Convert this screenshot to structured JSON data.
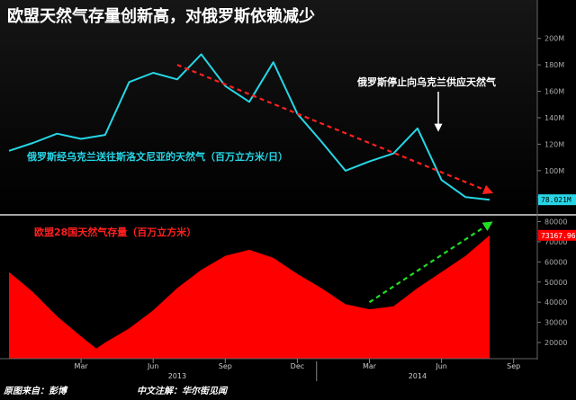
{
  "title": "欧盟天然气存量创新高，对俄罗斯依赖减少",
  "chart_data": [
    {
      "type": "line",
      "series": [
        {
          "name": "俄罗斯经乌克兰送往斯洛文尼亚的天然气（百万立方米/日）",
          "color": "#26d6e6",
          "x": [
            "2012-12",
            "2013-01",
            "2013-02",
            "2013-03",
            "2013-04",
            "2013-05",
            "2013-06",
            "2013-07",
            "2013-08",
            "2013-09",
            "2013-10",
            "2013-11",
            "2013-12",
            "2014-01",
            "2014-02",
            "2014-03",
            "2014-04",
            "2014-05",
            "2014-06",
            "2014-07",
            "2014-08"
          ],
          "values": [
            115,
            121,
            128,
            124,
            127,
            167,
            174,
            169,
            188,
            164,
            152,
            182,
            143,
            122,
            100,
            107,
            113,
            132,
            93,
            80,
            78.021
          ]
        }
      ],
      "ylim": [
        70,
        210
      ],
      "yticks": [
        "200M",
        "180M",
        "160M",
        "140M",
        "120M",
        "100M",
        "80M"
      ],
      "last_value_label": "78.021M",
      "trend_arrow": {
        "color": "#ff2020",
        "from": [
          "2013-07",
          180
        ],
        "to": [
          "2014-08",
          84
        ]
      },
      "annotations": [
        {
          "text": "俄罗斯经乌克兰送往斯洛文尼亚的天然气（百万立方米/日）",
          "color": "#26d6e6"
        },
        {
          "text": "俄罗斯停止向乌克兰供应天然气",
          "color": "#ffffff",
          "points_to": "2014-05"
        }
      ]
    },
    {
      "type": "area",
      "series": [
        {
          "name": "欧盟28国天然气存量（百万立方米）",
          "color": "#ff0000",
          "x": [
            "2012-12",
            "2013-01",
            "2013-02",
            "2013-03",
            "2013-03-20",
            "2013-04",
            "2013-05",
            "2013-06",
            "2013-07",
            "2013-08",
            "2013-09",
            "2013-10",
            "2013-11",
            "2013-12",
            "2014-01",
            "2014-02",
            "2014-03",
            "2014-04",
            "2014-05",
            "2014-06",
            "2014-07",
            "2014-08"
          ],
          "values": [
            55000,
            45000,
            33000,
            23000,
            17000,
            20000,
            27000,
            36000,
            47000,
            56000,
            63000,
            66000,
            62000,
            54000,
            47000,
            39000,
            36500,
            38000,
            47000,
            55000,
            63000,
            73167.96
          ]
        }
      ],
      "ylim": [
        12000,
        82000
      ],
      "yticks": [
        "80000",
        "70000",
        "60000",
        "50000",
        "40000",
        "30000",
        "20000"
      ],
      "last_value_label": "73167.96",
      "trend_arrow": {
        "color": "#22dd22",
        "from": [
          "2014-03",
          40000
        ],
        "to": [
          "2014-08",
          79000
        ]
      },
      "annotations": [
        {
          "text": "欧盟28国天然气存量（百万立方米）",
          "color": "#ff2020"
        }
      ]
    }
  ],
  "x_axis": {
    "months": [
      {
        "label": "Mar",
        "date": "2013-03"
      },
      {
        "label": "Jun",
        "date": "2013-06"
      },
      {
        "label": "Sep",
        "date": "2013-09"
      },
      {
        "label": "Dec",
        "date": "2013-12"
      },
      {
        "label": "Mar",
        "date": "2014-03"
      },
      {
        "label": "Jun",
        "date": "2014-06"
      },
      {
        "label": "Sep",
        "date": "2014-09"
      }
    ],
    "years": [
      {
        "label": "2013",
        "date": "2013-07"
      },
      {
        "label": "2014",
        "date": "2014-05"
      }
    ]
  },
  "footer": {
    "source": "原图来自：彭博",
    "notes": "中文注解：华尔街见闻"
  }
}
